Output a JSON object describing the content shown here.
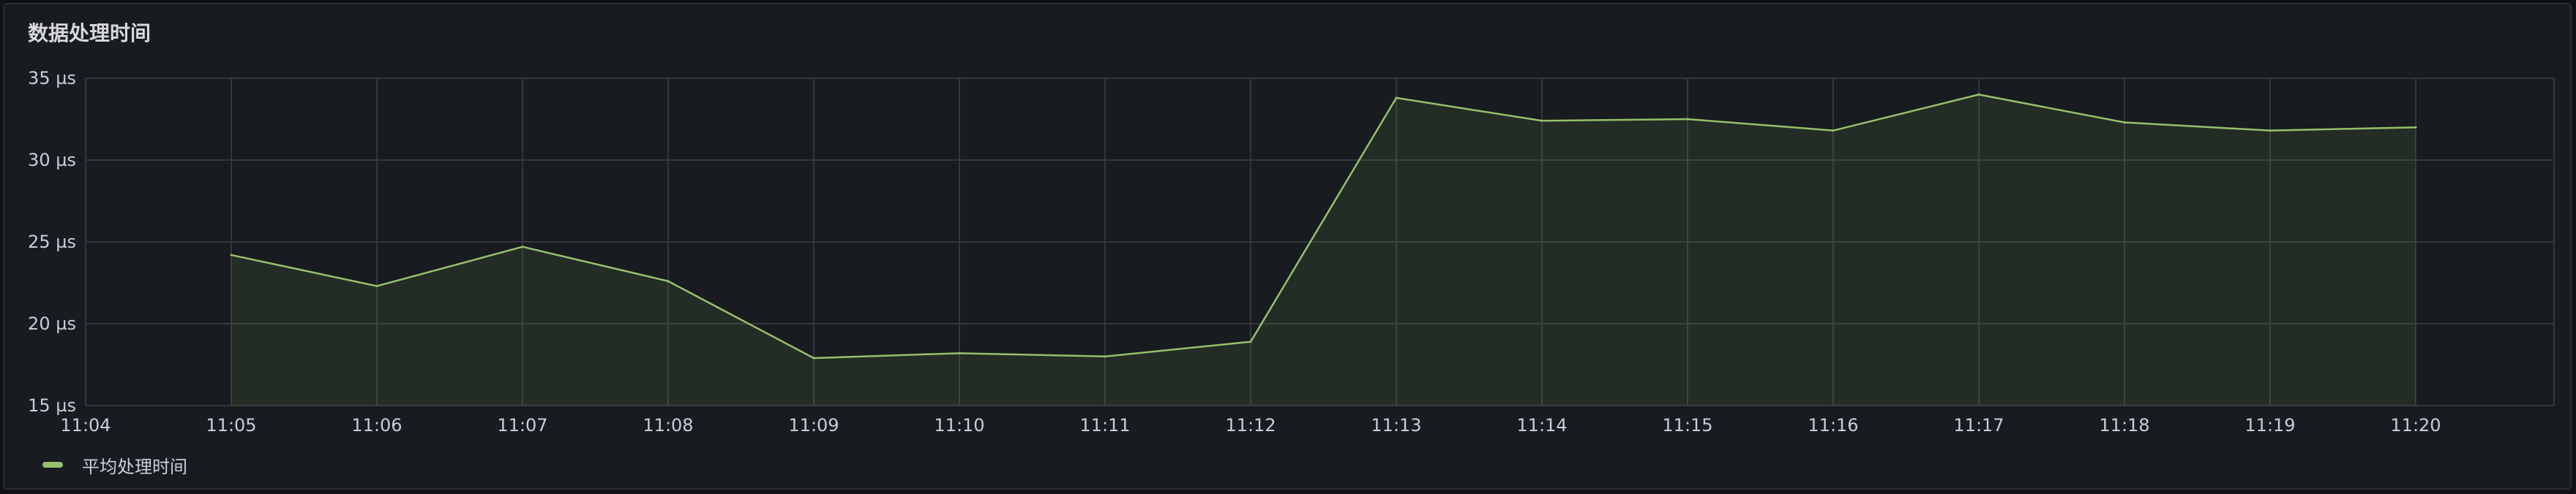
{
  "panel": {
    "title": "数据处理时间"
  },
  "legend": {
    "label": "平均处理时间",
    "color": "#96c06b"
  },
  "chart_data": {
    "type": "area",
    "title": "数据处理时间",
    "xlabel": "",
    "ylabel": "",
    "y_unit": "µs",
    "ylim": [
      15,
      35
    ],
    "y_ticks": [
      "15 µs",
      "20 µs",
      "25 µs",
      "30 µs",
      "35 µs"
    ],
    "x_ticks": [
      "11:04",
      "11:05",
      "11:06",
      "11:07",
      "11:08",
      "11:09",
      "11:10",
      "11:11",
      "11:12",
      "11:13",
      "11:14",
      "11:15",
      "11:16",
      "11:17",
      "11:18",
      "11:19",
      "11:20"
    ],
    "x": [
      "11:05",
      "11:06",
      "11:07",
      "11:08",
      "11:09",
      "11:10",
      "11:11",
      "11:12",
      "11:13",
      "11:14",
      "11:15",
      "11:16",
      "11:17",
      "11:18",
      "11:19",
      "11:20"
    ],
    "series": [
      {
        "name": "平均处理时间",
        "values": [
          24.2,
          22.3,
          24.7,
          22.6,
          17.9,
          18.2,
          18.0,
          18.9,
          33.8,
          32.4,
          32.5,
          31.8,
          34.0,
          32.3,
          31.8,
          32.0
        ]
      }
    ],
    "grid": true,
    "legend_position": "bottom-left",
    "colors": {
      "line": "#96c06b",
      "fill": "#96c06b",
      "grid": "#34373d",
      "text": "#ccccdc"
    }
  }
}
